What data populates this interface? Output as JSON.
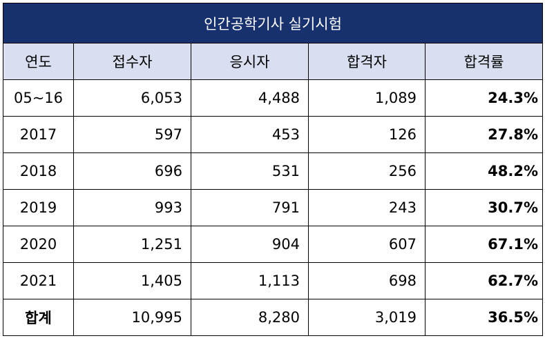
{
  "title": "인간공학기사 실기시험",
  "headers": [
    "연도",
    "접수자",
    "응시자",
    "합격자",
    "합격률"
  ],
  "rows": [
    {
      "year": "05~16",
      "applicants": "6,053",
      "examinees": "4,488",
      "passers": "1,089",
      "rate": "24.3%"
    },
    {
      "year": "2017",
      "applicants": "597",
      "examinees": "453",
      "passers": "126",
      "rate": "27.8%"
    },
    {
      "year": "2018",
      "applicants": "696",
      "examinees": "531",
      "passers": "256",
      "rate": "48.2%"
    },
    {
      "year": "2019",
      "applicants": "993",
      "examinees": "791",
      "passers": "243",
      "rate": "30.7%"
    },
    {
      "year": "2020",
      "applicants": "1,251",
      "examinees": "904",
      "passers": "607",
      "rate": "67.1%"
    },
    {
      "year": "2021",
      "applicants": "1,405",
      "examinees": "1,113",
      "passers": "698",
      "rate": "62.7%"
    }
  ],
  "total": {
    "label": "합계",
    "applicants": "10,995",
    "examinees": "8,280",
    "passers": "3,019",
    "rate": "36.5%"
  }
}
